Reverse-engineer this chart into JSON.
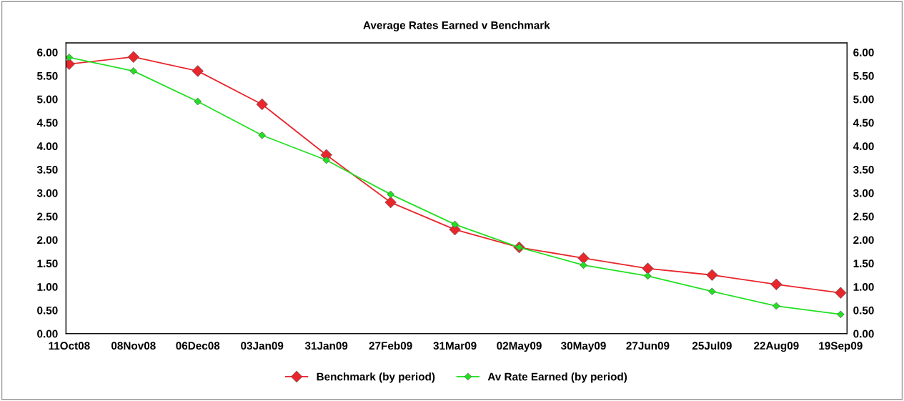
{
  "chart_data": {
    "type": "line",
    "title": "Average Rates Earned v Benchmark",
    "categories": [
      "11Oct08",
      "08Nov08",
      "06Dec08",
      "03Jan09",
      "31Jan09",
      "27Feb09",
      "31Mar09",
      "02May09",
      "30May09",
      "27Jun09",
      "25Jul09",
      "22Aug09",
      "19Sep09"
    ],
    "series": [
      {
        "name": "Benchmark (by period)",
        "color": "#e8262c",
        "values": [
          5.75,
          5.9,
          5.6,
          4.89,
          3.81,
          2.8,
          2.22,
          1.84,
          1.61,
          1.39,
          1.25,
          1.05,
          0.87
        ]
      },
      {
        "name": "Av Rate Earned (by period)",
        "color": "#22e022",
        "values": [
          5.89,
          5.6,
          4.95,
          4.23,
          3.7,
          2.97,
          2.33,
          1.84,
          1.46,
          1.23,
          0.9,
          0.59,
          0.41
        ]
      }
    ],
    "ylim": [
      0,
      6.2
    ],
    "yticks": [
      {
        "value": 0,
        "label": "0.00"
      },
      {
        "value": 0.5,
        "label": "0.50"
      },
      {
        "value": 1,
        "label": "1.00"
      },
      {
        "value": 1.5,
        "label": "1.50"
      },
      {
        "value": 2,
        "label": "2.00"
      },
      {
        "value": 2.5,
        "label": "2.50"
      },
      {
        "value": 3,
        "label": "3.00"
      },
      {
        "value": 3.5,
        "label": "3.50"
      },
      {
        "value": 4,
        "label": "4.00"
      },
      {
        "value": 4.5,
        "label": "4.50"
      },
      {
        "value": 5,
        "label": "5.00"
      },
      {
        "value": 5.5,
        "label": "5.50"
      },
      {
        "value": 6,
        "label": "6.00"
      }
    ],
    "y2lim": [
      0,
      6.2
    ],
    "y2ticks": [
      {
        "value": 0,
        "label": "0.00"
      },
      {
        "value": 0.5,
        "label": "0.50"
      },
      {
        "value": 1,
        "label": "1.00"
      },
      {
        "value": 1.5,
        "label": "1.50"
      },
      {
        "value": 2,
        "label": "2.00"
      },
      {
        "value": 2.5,
        "label": "2.50"
      },
      {
        "value": 3,
        "label": "3.00"
      },
      {
        "value": 3.5,
        "label": "3.50"
      },
      {
        "value": 4,
        "label": "4.00"
      },
      {
        "value": 4.5,
        "label": "4.50"
      },
      {
        "value": 5,
        "label": "5.00"
      },
      {
        "value": 5.5,
        "label": "5.50"
      },
      {
        "value": 6,
        "label": "6.00"
      }
    ],
    "marker": "diamond",
    "line_style": "solid",
    "grid": false,
    "legend": "bottom"
  }
}
